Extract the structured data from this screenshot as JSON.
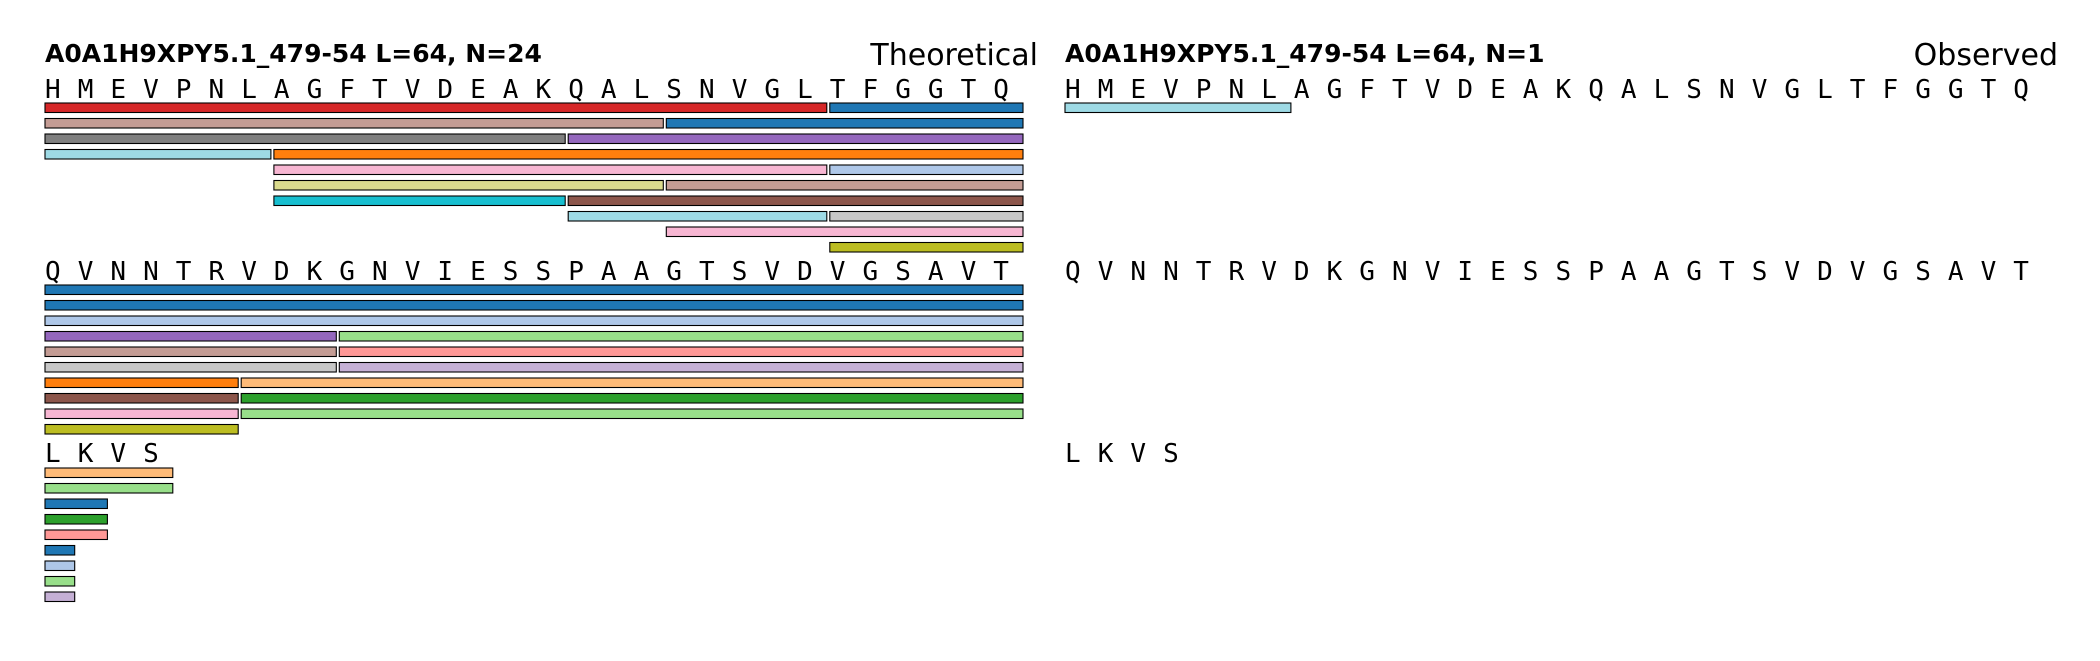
{
  "panels": [
    {
      "id": "theoretical",
      "title": "A0A1H9XPY5.1_479-54  L=64, N=24",
      "label": "Theoretical",
      "rows": [
        {
          "sequence": "HMEVPNLAGFTVDEAKQALSNVGLTFGGTQ",
          "bars": [
            {
              "start": 0,
              "end": 23,
              "track": 0,
              "color": "#d62728"
            },
            {
              "start": 24,
              "end": 29,
              "track": 0,
              "color": "#1f77b4"
            },
            {
              "start": 0,
              "end": 18,
              "track": 1,
              "color": "#c49c94"
            },
            {
              "start": 19,
              "end": 29,
              "track": 1,
              "color": "#1f77b4"
            },
            {
              "start": 0,
              "end": 15,
              "track": 2,
              "color": "#7f7f7f"
            },
            {
              "start": 16,
              "end": 29,
              "track": 2,
              "color": "#9467bd"
            },
            {
              "start": 0,
              "end": 6,
              "track": 3,
              "color": "#9edae5"
            },
            {
              "start": 7,
              "end": 29,
              "track": 3,
              "color": "#ff7f0e"
            },
            {
              "start": 7,
              "end": 23,
              "track": 4,
              "color": "#f7b6d2"
            },
            {
              "start": 24,
              "end": 29,
              "track": 4,
              "color": "#aec7e8"
            },
            {
              "start": 7,
              "end": 18,
              "track": 5,
              "color": "#dbdb8d"
            },
            {
              "start": 19,
              "end": 29,
              "track": 5,
              "color": "#c49c94"
            },
            {
              "start": 7,
              "end": 15,
              "track": 6,
              "color": "#17becf"
            },
            {
              "start": 16,
              "end": 29,
              "track": 6,
              "color": "#8c564b"
            },
            {
              "start": 16,
              "end": 23,
              "track": 7,
              "color": "#9edae5"
            },
            {
              "start": 24,
              "end": 29,
              "track": 7,
              "color": "#c7c7c7"
            },
            {
              "start": 19,
              "end": 29,
              "track": 8,
              "color": "#f7b6d2"
            },
            {
              "start": 24,
              "end": 29,
              "track": 9,
              "color": "#bcbd22"
            }
          ]
        },
        {
          "sequence": "QVNNTRVDKGNVIESSPAAGTSVDVGSAVT",
          "bars": [
            {
              "start": 0,
              "end": 29,
              "track": 0,
              "color": "#1f77b4"
            },
            {
              "start": 0,
              "end": 29,
              "track": 1,
              "color": "#1f77b4"
            },
            {
              "start": 0,
              "end": 29,
              "track": 2,
              "color": "#aec7e8"
            },
            {
              "start": 0,
              "end": 8,
              "track": 3,
              "color": "#9467bd"
            },
            {
              "start": 9,
              "end": 29,
              "track": 3,
              "color": "#98df8a"
            },
            {
              "start": 0,
              "end": 8,
              "track": 4,
              "color": "#c49c94"
            },
            {
              "start": 9,
              "end": 29,
              "track": 4,
              "color": "#ff9896"
            },
            {
              "start": 0,
              "end": 8,
              "track": 5,
              "color": "#c7c7c7"
            },
            {
              "start": 9,
              "end": 29,
              "track": 5,
              "color": "#c5b0d5"
            },
            {
              "start": 0,
              "end": 5,
              "track": 6,
              "color": "#ff7f0e"
            },
            {
              "start": 6,
              "end": 29,
              "track": 6,
              "color": "#ffbb78"
            },
            {
              "start": 0,
              "end": 5,
              "track": 7,
              "color": "#8c564b"
            },
            {
              "start": 6,
              "end": 29,
              "track": 7,
              "color": "#2ca02c"
            },
            {
              "start": 0,
              "end": 5,
              "track": 8,
              "color": "#f7b6d2"
            },
            {
              "start": 6,
              "end": 29,
              "track": 8,
              "color": "#98df8a"
            },
            {
              "start": 0,
              "end": 5,
              "track": 9,
              "color": "#bcbd22"
            }
          ]
        },
        {
          "sequence": "LKVS",
          "bars": [
            {
              "start": 0,
              "end": 3,
              "track": 0,
              "color": "#ffbb78"
            },
            {
              "start": 0,
              "end": 3,
              "track": 1,
              "color": "#98df8a"
            },
            {
              "start": 0,
              "end": 1,
              "track": 2,
              "color": "#1f77b4"
            },
            {
              "start": 0,
              "end": 1,
              "track": 3,
              "color": "#2ca02c"
            },
            {
              "start": 0,
              "end": 1,
              "track": 4,
              "color": "#ff9896"
            },
            {
              "start": 0,
              "end": 0,
              "track": 5,
              "color": "#1f77b4"
            },
            {
              "start": 0,
              "end": 0,
              "track": 6,
              "color": "#aec7e8"
            },
            {
              "start": 0,
              "end": 0,
              "track": 7,
              "color": "#98df8a"
            },
            {
              "start": 0,
              "end": 0,
              "track": 8,
              "color": "#c5b0d5"
            }
          ]
        }
      ]
    },
    {
      "id": "observed",
      "title": "A0A1H9XPY5.1_479-54  L=64, N=1",
      "label": "Observed",
      "rows": [
        {
          "sequence": "HMEVPNLAGFTVDEAKQALSNVGLTFGGTQ",
          "bars": [
            {
              "start": 0,
              "end": 6,
              "track": 0,
              "color": "#9edae5"
            }
          ]
        },
        {
          "sequence": "QVNNTRVDKGNVIESSPAAGTSVDVGSAVT",
          "bars": []
        },
        {
          "sequence": "LKVS",
          "bars": []
        }
      ]
    }
  ]
}
